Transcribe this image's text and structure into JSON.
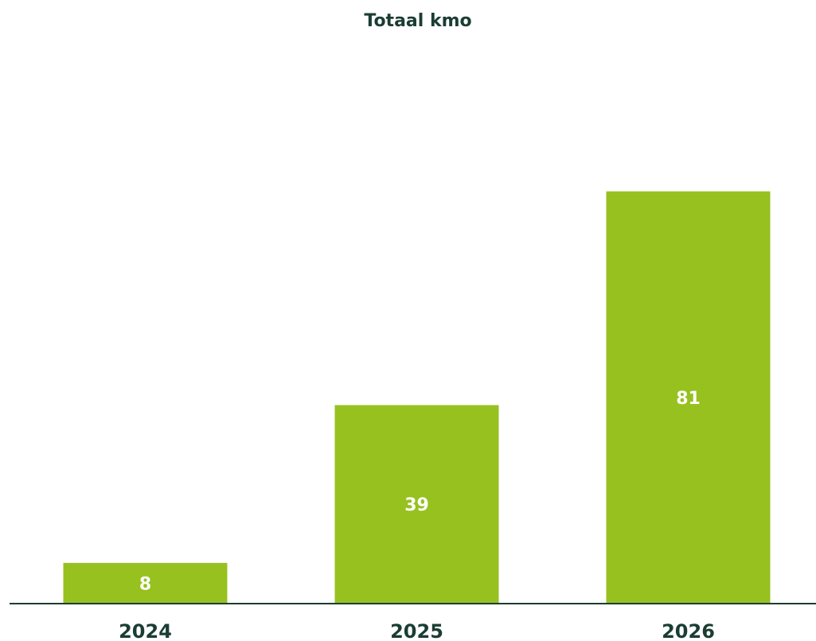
{
  "chart_data": {
    "type": "bar",
    "title": "Totaal kmo",
    "categories": [
      "2024",
      "2025",
      "2026"
    ],
    "values": [
      8,
      39,
      81
    ],
    "color": "#97c11f",
    "ylim": [
      0,
      100
    ]
  }
}
